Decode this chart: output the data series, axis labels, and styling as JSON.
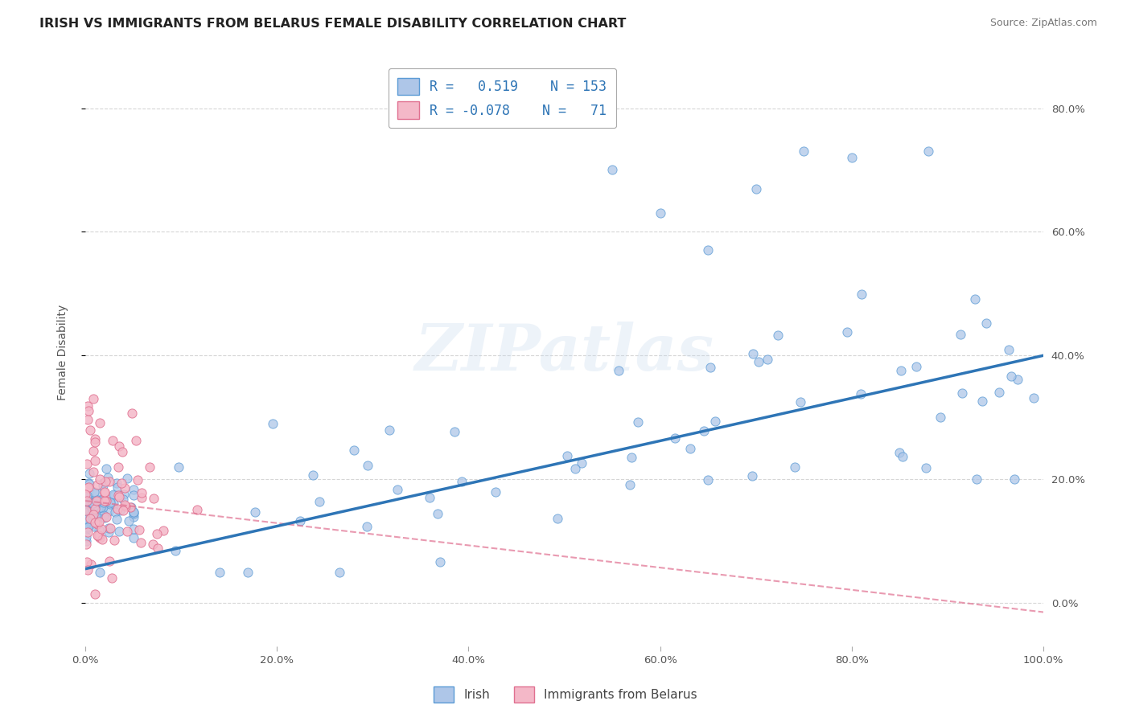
{
  "title": "IRISH VS IMMIGRANTS FROM BELARUS FEMALE DISABILITY CORRELATION CHART",
  "source": "Source: ZipAtlas.com",
  "ylabel": "Female Disability",
  "xlabel": "",
  "xlim": [
    0.0,
    1.0
  ],
  "ylim": [
    -0.07,
    0.88
  ],
  "irish_color": "#aec6e8",
  "irish_edge_color": "#5b9bd5",
  "belarus_color": "#f4b8c8",
  "belarus_edge_color": "#e07090",
  "background_color": "#ffffff",
  "grid_color": "#cccccc",
  "irish_R": 0.519,
  "irish_N": 153,
  "belarus_R": -0.078,
  "belarus_N": 71,
  "legend_R_color": "#2e75b6",
  "watermark": "ZIPatlas",
  "irish_line_color": "#2e75b6",
  "irish_line_intercept": 0.055,
  "irish_line_slope": 0.345,
  "belarus_line_color": "#e07090",
  "belarus_line_intercept": 0.165,
  "belarus_line_slope": -0.18,
  "ytick_positions": [
    0.0,
    0.2,
    0.4,
    0.6,
    0.8
  ],
  "ytick_labels": [
    "0.0%",
    "20.0%",
    "40.0%",
    "60.0%",
    "80.0%"
  ],
  "xtick_positions": [
    0.0,
    0.2,
    0.4,
    0.6,
    0.8,
    1.0
  ],
  "xtick_labels": [
    "0.0%",
    "20.0%",
    "40.0%",
    "60.0%",
    "80.0%",
    "100.0%"
  ]
}
